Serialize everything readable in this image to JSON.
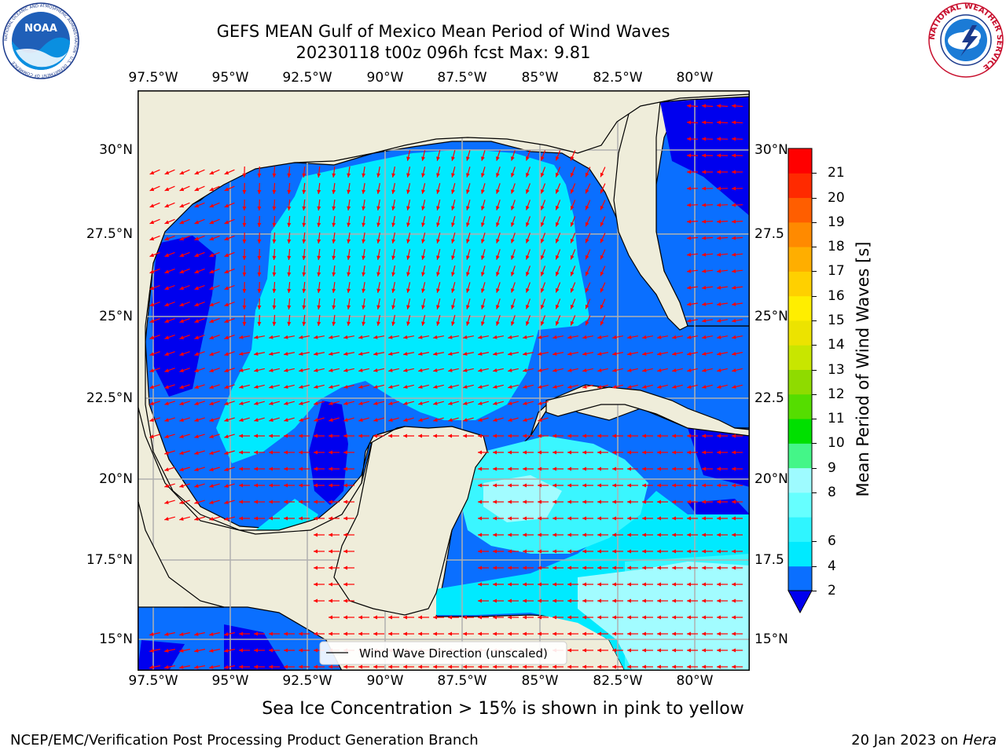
{
  "title_line1": "GEFS MEAN Gulf of Mexico Mean Period of Wind Waves",
  "title_line2": "20230118 t00z 096h fcst   Max: 9.81",
  "logos": {
    "left": "NOAA",
    "left_ring_text": "NATIONAL OCEANIC AND ATMOSPHERIC ADMINISTRATION · U.S. DEPARTMENT OF COMMERCE",
    "right_ring_text": "NATIONAL WEATHER SERVICE"
  },
  "lon_ticks": [
    "97.5°W",
    "95°W",
    "92.5°W",
    "90°W",
    "87.5°W",
    "85°W",
    "82.5°W",
    "80°W"
  ],
  "lat_ticks_left": [
    "30°N",
    "27.5°N",
    "25°N",
    "22.5°N",
    "20°N",
    "17.5°N",
    "15°N"
  ],
  "lat_ticks_right": [
    "30°N",
    "27.5",
    "25°N",
    "22.5",
    "20°N",
    "17.5",
    "15°N"
  ],
  "legend_label": "Wind Wave Direction (unscaled)",
  "colorbar": {
    "label": "Mean Period of Wind Waves [s]",
    "levels": [
      "2",
      "4",
      "6",
      "7",
      "8",
      "9",
      "10",
      "11",
      "12",
      "13",
      "14",
      "15",
      "16",
      "17",
      "18",
      "19",
      "20",
      "21"
    ],
    "tick_labels": [
      "2",
      "4",
      "6",
      "8",
      "9",
      "10",
      "11",
      "12",
      "13",
      "14",
      "15",
      "16",
      "17",
      "18",
      "19",
      "20",
      "21"
    ],
    "colors": [
      "#0a6fff",
      "#00eaff",
      "#2ff5ff",
      "#66ffff",
      "#9efbff",
      "#44f688",
      "#00e000",
      "#55dd00",
      "#8fdb00",
      "#c8e600",
      "#ece300",
      "#ffee00",
      "#ffd000",
      "#ffae00",
      "#ff8a00",
      "#ff5e00",
      "#ff2a00",
      "#ff0000"
    ],
    "under_color": "#0000ee"
  },
  "colors": {
    "land": "#efedda",
    "c_2_4": "#0a6fff",
    "c_lt2": "#0000ee",
    "c_4_6": "#00eaff",
    "c_6_8": "#3af6ff",
    "c_8_9": "#a2fcff",
    "arrow": "#ff0000",
    "grid": "#b0b0b0"
  },
  "footer_note": "Sea Ice Concentration > 15% is shown in pink to yellow",
  "footer_left": "NCEP/EMC/Verification Post Processing Product Generation Branch",
  "footer_right_date": "20 Jan 2023 on ",
  "footer_right_host": "Hera"
}
